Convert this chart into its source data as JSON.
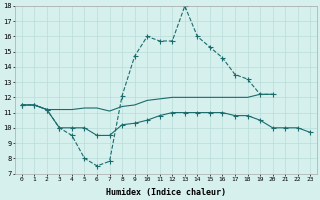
{
  "xlabel": "Humidex (Indice chaleur)",
  "bg_color": "#d6f0ee",
  "grid_color": "#b8ddd9",
  "line_color": "#1a6b6b",
  "xlim": [
    -0.5,
    23.5
  ],
  "ylim": [
    7,
    18
  ],
  "xticks": [
    0,
    1,
    2,
    3,
    4,
    5,
    6,
    7,
    8,
    9,
    10,
    11,
    12,
    13,
    14,
    15,
    16,
    17,
    18,
    19,
    20,
    21,
    22,
    23
  ],
  "yticks": [
    7,
    8,
    9,
    10,
    11,
    12,
    13,
    14,
    15,
    16,
    17,
    18
  ],
  "line1_x": [
    0,
    1,
    2,
    3,
    4,
    5,
    6,
    7,
    8,
    9,
    10,
    11,
    12,
    13,
    14,
    15,
    16,
    17,
    18,
    19,
    20
  ],
  "line1_y": [
    11.5,
    11.5,
    11.2,
    10.0,
    9.5,
    8.0,
    7.5,
    7.8,
    12.1,
    14.7,
    16.0,
    15.7,
    15.7,
    18.0,
    16.0,
    15.3,
    14.6,
    13.5,
    13.2,
    12.2,
    12.2
  ],
  "line2_x": [
    0,
    1,
    2,
    3,
    4,
    5,
    6,
    7,
    8,
    9,
    10,
    11,
    12,
    13,
    14,
    15,
    16,
    17,
    18,
    19,
    20
  ],
  "line2_y": [
    11.5,
    11.5,
    11.2,
    11.2,
    11.2,
    11.3,
    11.3,
    11.1,
    11.4,
    11.5,
    11.8,
    11.9,
    12.0,
    12.0,
    12.0,
    12.0,
    12.0,
    12.0,
    12.0,
    12.2,
    12.2
  ],
  "line3_x": [
    0,
    1,
    2,
    3,
    4,
    5,
    6,
    7,
    8,
    9,
    10,
    11,
    12,
    13,
    14,
    15,
    16,
    17,
    18,
    19,
    20,
    21,
    22,
    23
  ],
  "line3_y": [
    11.5,
    11.5,
    11.2,
    10.0,
    10.0,
    10.0,
    9.5,
    9.5,
    10.2,
    10.3,
    10.5,
    10.8,
    11.0,
    11.0,
    11.0,
    11.0,
    11.0,
    10.8,
    10.8,
    10.5,
    10.0,
    10.0,
    10.0,
    9.7
  ],
  "markersize": 1.8,
  "linewidth": 0.8
}
